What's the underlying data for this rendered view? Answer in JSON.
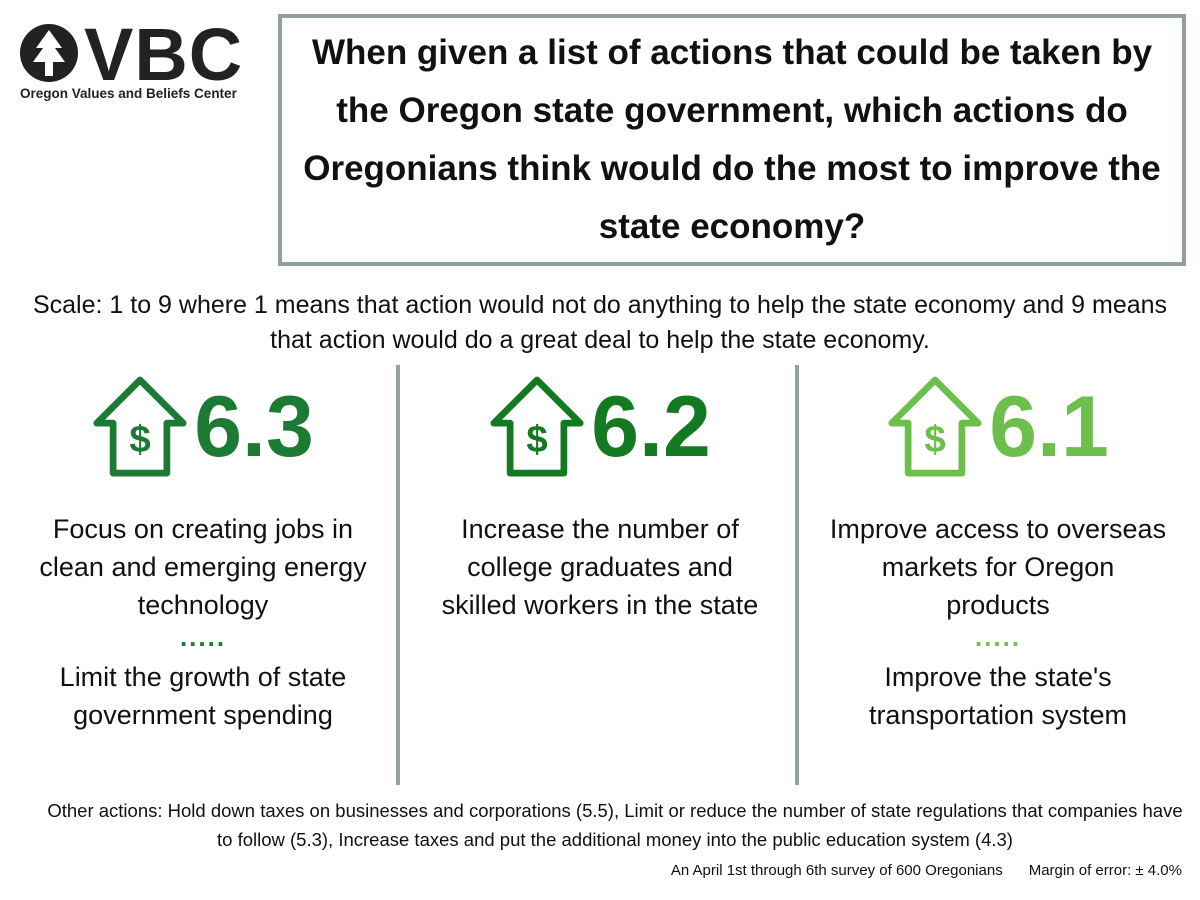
{
  "logo": {
    "letters": "VBC",
    "name": "Oregon Values and Beliefs Center"
  },
  "title": "When given a list of actions that could be taken by the Oregon state government, which actions do Oregonians think would do the most to improve the state economy?",
  "scale_note": "Scale: 1 to 9 where 1 means that action would not do anything to help the state economy and 9 means that action would do a great deal to help the state economy.",
  "columns": [
    {
      "icon_text": "$",
      "score": "6.3",
      "color": "#1d7a35",
      "actions": [
        "Focus on creating jobs in clean and emerging energy technology",
        "Limit the growth of state government spending"
      ],
      "separator": "....."
    },
    {
      "icon_text": "$",
      "score": "6.2",
      "color": "#147a22",
      "actions": [
        "Increase the number of college graduates and skilled workers in the state"
      ]
    },
    {
      "icon_text": "$",
      "score": "6.1",
      "color": "#6cbf4b",
      "actions": [
        "Improve access to overseas markets for Oregon products",
        "Improve the state's transportation system"
      ],
      "separator": "....."
    }
  ],
  "other_actions": "Other actions: Hold down taxes on businesses and corporations (5.5), Limit or reduce the number of state regulations that companies have to follow (5.3), Increase taxes and put the additional money into the public education system (4.3)",
  "footer": {
    "survey": "An April 1st through 6th survey of 600 Oregonians",
    "margin": "Margin of error: ± 4.0%"
  }
}
